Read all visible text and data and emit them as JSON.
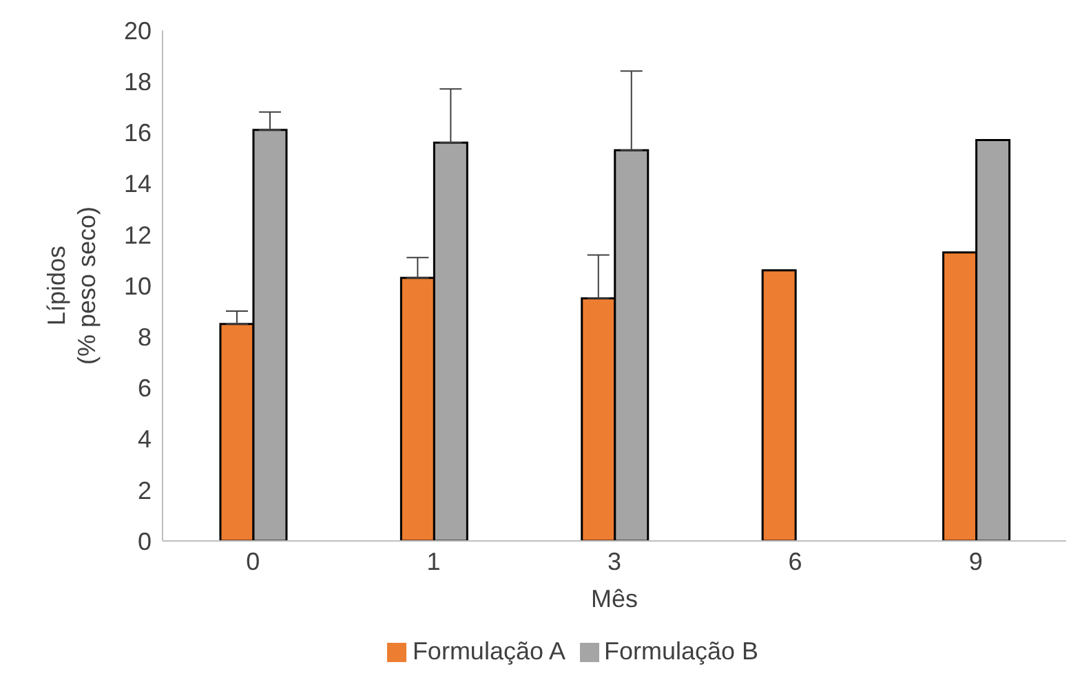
{
  "chart_data": {
    "type": "bar",
    "xlabel": "Mês",
    "ylabel": "Lípidos\n(% peso seco)",
    "categories": [
      "0",
      "1",
      "3",
      "6",
      "9"
    ],
    "series": [
      {
        "name": "Formulação A",
        "color": "#ed7d31",
        "values": [
          8.5,
          10.3,
          9.5,
          10.6,
          11.3
        ],
        "errors": [
          [
            8.5,
            9.0
          ],
          [
            10.3,
            11.1
          ],
          [
            9.5,
            11.2
          ],
          null,
          null
        ]
      },
      {
        "name": "Formulação B",
        "color": "#a5a5a5",
        "values": [
          16.1,
          15.6,
          15.3,
          null,
          15.7
        ],
        "errors": [
          [
            16.1,
            16.8
          ],
          [
            15.6,
            17.7
          ],
          [
            15.3,
            18.4
          ],
          null,
          null
        ]
      }
    ],
    "ylim": [
      0,
      20
    ],
    "yticks": [
      0,
      2,
      4,
      6,
      8,
      10,
      12,
      14,
      16,
      18,
      20
    ],
    "grid": false,
    "legend": "bottom"
  }
}
